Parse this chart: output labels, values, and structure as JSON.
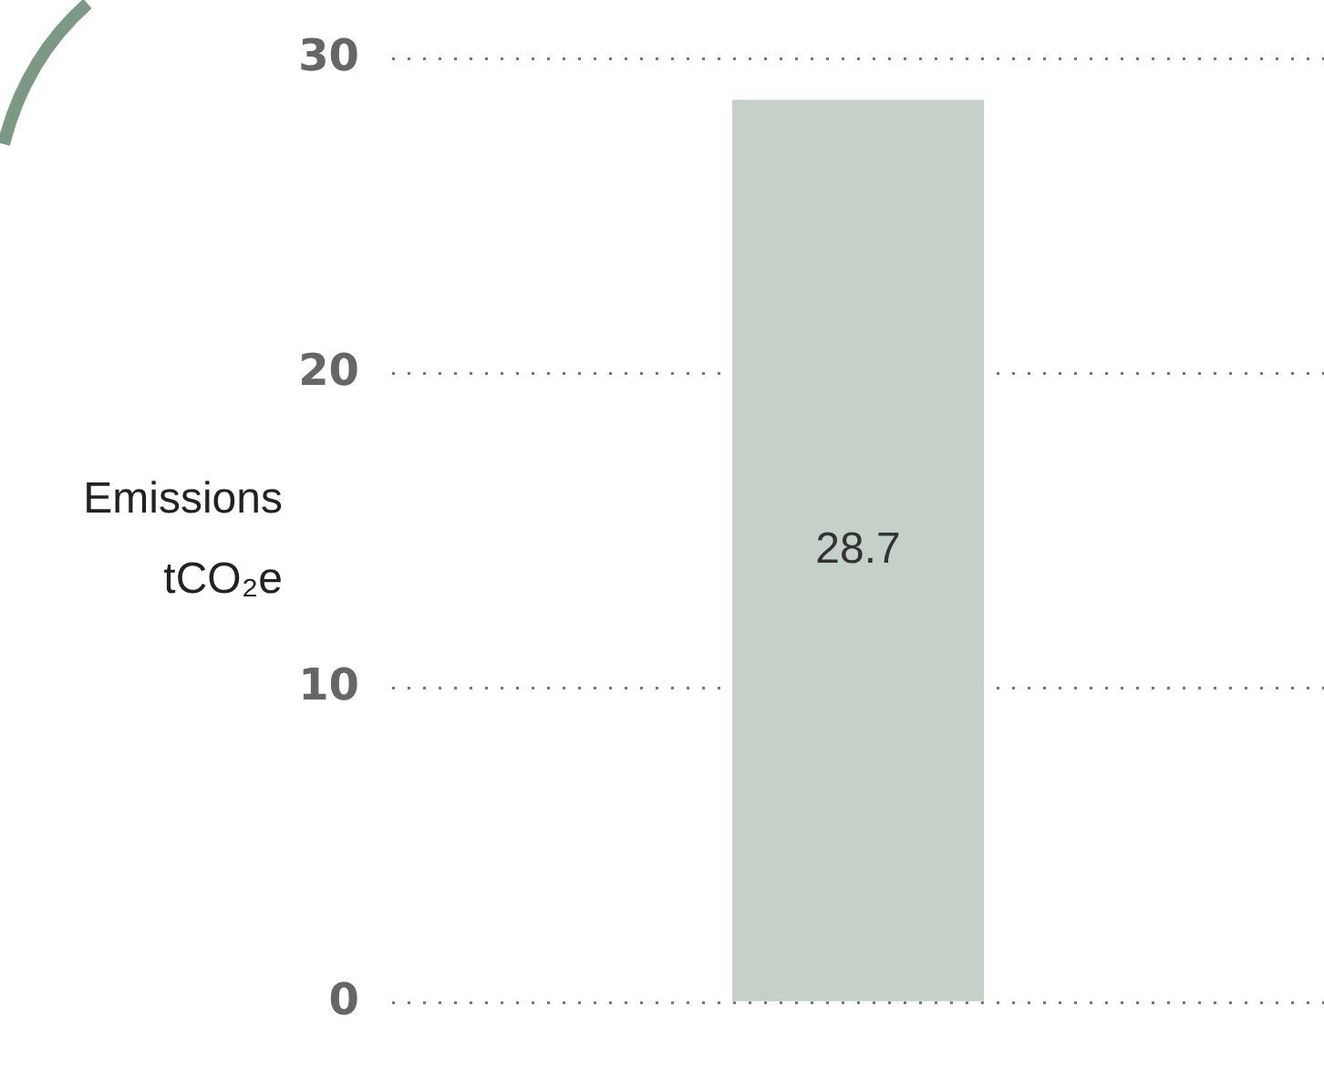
{
  "chart_data": {
    "type": "bar",
    "categories": [
      null
    ],
    "values": [
      28.7
    ],
    "color": "#c5d0c8",
    "ylabel": "Emissions\ntCO₂e",
    "ylim": [
      0,
      30
    ],
    "yticks": [
      0,
      10,
      20,
      30
    ],
    "grid": "y",
    "data_labels": true,
    "legend": false
  }
}
